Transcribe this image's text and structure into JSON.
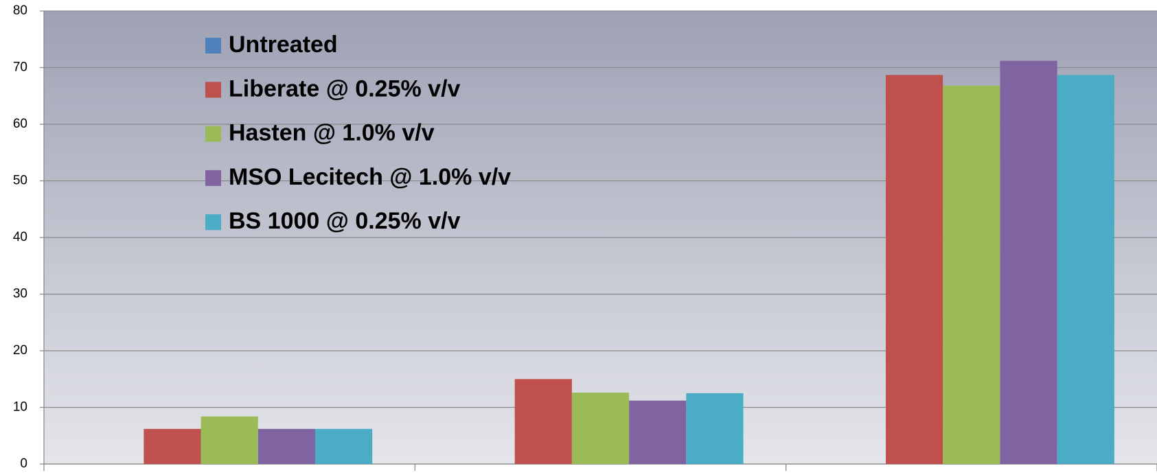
{
  "chart_data": {
    "type": "bar",
    "categories": [
      null,
      null,
      null
    ],
    "series": [
      {
        "name": "Untreated",
        "color": "#4f81bd",
        "values": [
          0,
          0,
          0
        ]
      },
      {
        "name": "Liberate @ 0.25% v/v",
        "color": "#c0504d",
        "values": [
          6.2,
          15,
          68.7
        ]
      },
      {
        "name": "Hasten @ 1.0% v/v",
        "color": "#9bbb59",
        "values": [
          8.4,
          12.6,
          66.8
        ]
      },
      {
        "name": "MSO Lecitech @ 1.0% v/v",
        "color": "#8064a2",
        "values": [
          6.2,
          11.2,
          71.2
        ]
      },
      {
        "name": "BS 1000 @ 0.25% v/v",
        "color": "#4bacc6",
        "values": [
          6.2,
          12.5,
          68.7
        ]
      }
    ],
    "ylim": [
      0,
      80
    ],
    "yticks": [
      0,
      10,
      20,
      30,
      40,
      50,
      60,
      70,
      80
    ],
    "grid": true,
    "legend": "top-left"
  }
}
